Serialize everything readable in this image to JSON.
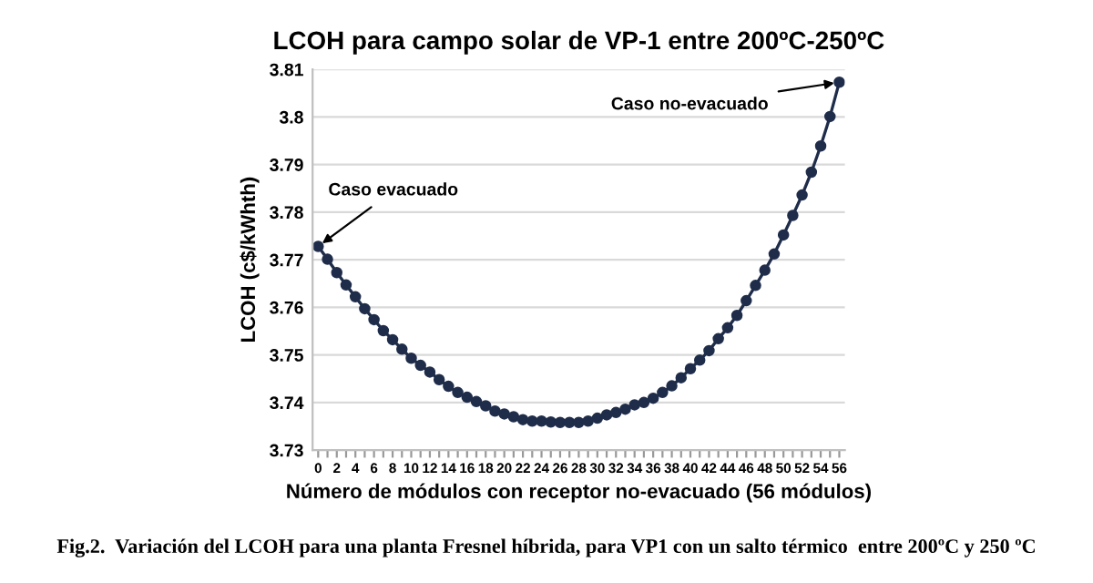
{
  "chart_data": {
    "type": "line",
    "title": "LCOH para campo solar de VP-1 entre 200ºC-250ºC",
    "xlabel": "Número de módulos con receptor no-evacuado (56 módulos)",
    "ylabel": "LCOH (c$/kWhth)",
    "x": [
      0,
      1,
      2,
      3,
      4,
      5,
      6,
      7,
      8,
      9,
      10,
      11,
      12,
      13,
      14,
      15,
      16,
      17,
      18,
      19,
      20,
      21,
      22,
      23,
      24,
      25,
      26,
      27,
      28,
      29,
      30,
      31,
      32,
      33,
      34,
      35,
      36,
      37,
      38,
      39,
      40,
      41,
      42,
      43,
      44,
      45,
      46,
      47,
      48,
      49,
      50,
      51,
      52,
      53,
      54,
      55,
      56
    ],
    "series": [
      {
        "color": "#1f2d4a",
        "values": [
          3.7728,
          3.7701,
          3.7673,
          3.7647,
          3.7622,
          3.7597,
          3.7574,
          3.7551,
          3.7532,
          3.7512,
          3.7493,
          3.7478,
          3.7464,
          3.7448,
          3.7434,
          3.7421,
          3.7411,
          3.7402,
          3.7393,
          3.7382,
          3.7376,
          3.737,
          3.7364,
          3.7361,
          3.7361,
          3.7359,
          3.7358,
          3.7358,
          3.7358,
          3.7361,
          3.7367,
          3.7374,
          3.7379,
          3.7386,
          3.7395,
          3.74,
          3.7409,
          3.7421,
          3.7435,
          3.7452,
          3.7471,
          3.7489,
          3.7509,
          3.7534,
          3.7557,
          3.7583,
          3.7614,
          3.7646,
          3.7678,
          3.7712,
          3.7752,
          3.7793,
          3.7836,
          3.7884,
          3.7939,
          3.8001,
          3.8073
        ]
      }
    ],
    "xlim": [
      -0.6,
      56.6
    ],
    "xticks": [
      0,
      {
        "value": 1,
        "label": null
      },
      2,
      {
        "value": 3,
        "label": null
      },
      4,
      {
        "value": 5,
        "label": null
      },
      6,
      {
        "value": 7,
        "label": null
      },
      8,
      {
        "value": 9,
        "label": null
      },
      10,
      {
        "value": 11,
        "label": null
      },
      12,
      {
        "value": 13,
        "label": null
      },
      14,
      {
        "value": 15,
        "label": null
      },
      16,
      {
        "value": 17,
        "label": null
      },
      18,
      {
        "value": 19,
        "label": null
      },
      20,
      {
        "value": 21,
        "label": null
      },
      22,
      {
        "value": 23,
        "label": null
      },
      24,
      {
        "value": 25,
        "label": null
      },
      26,
      {
        "value": 27,
        "label": null
      },
      28,
      {
        "value": 29,
        "label": null
      },
      30,
      {
        "value": 31,
        "label": null
      },
      32,
      {
        "value": 33,
        "label": null
      },
      34,
      {
        "value": 35,
        "label": null
      },
      36,
      {
        "value": 37,
        "label": null
      },
      38,
      {
        "value": 39,
        "label": null
      },
      40,
      {
        "value": 41,
        "label": null
      },
      42,
      {
        "value": 43,
        "label": null
      },
      44,
      {
        "value": 45,
        "label": null
      },
      46,
      {
        "value": 47,
        "label": null
      },
      48,
      {
        "value": 49,
        "label": null
      },
      50,
      {
        "value": 51,
        "label": null
      },
      52,
      {
        "value": 53,
        "label": null
      },
      54,
      {
        "value": 55,
        "label": null
      },
      56
    ],
    "ylim": [
      3.73,
      3.81
    ],
    "yticks": [
      3.73,
      3.74,
      3.75,
      3.76,
      3.77,
      3.78,
      3.79,
      {
        "value": 3.8,
        "label": "3.8"
      },
      3.81
    ],
    "grid": "y",
    "marker": "circle",
    "line_style": "solid",
    "legend": false,
    "annotations": [
      {
        "text": "Caso evacuado",
        "x": 0,
        "y": 3.7728
      },
      {
        "text": "Caso no-evacuado",
        "x": 56,
        "y": 3.8073
      },
      "Fig.2.  Variación del LCOH para una planta Fresnel híbrida, para VP1 con un salto térmico  entre 200ºC y 250 ºC"
    ]
  }
}
